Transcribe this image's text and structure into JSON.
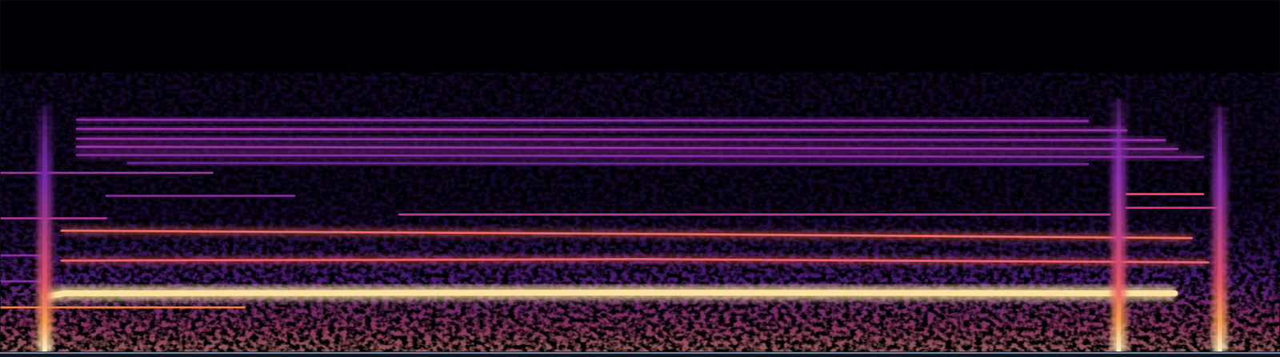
{
  "chart_data": {
    "type": "spectrogram",
    "xlim": [
      0,
      100
    ],
    "ylim": [
      0,
      100
    ],
    "grid": false,
    "tick_labels": false,
    "series": [
      {
        "type": "line",
        "color": "#fde2a0",
        "x": [
          3.5,
          5.0,
          50.0,
          91.8
        ],
        "values": [
          15.7,
          16.7,
          16.9,
          16.7
        ]
      },
      {
        "type": "line",
        "color": "#f0803a",
        "x": [
          0.0,
          19.1
        ],
        "values": [
          12.7,
          12.7
        ]
      },
      {
        "type": "line",
        "color": "#f2606a",
        "x": [
          4.8,
          50.0,
          94.4
        ],
        "values": [
          26.0,
          26.4,
          25.5
        ]
      },
      {
        "type": "line",
        "color": "#f06a62",
        "x": [
          4.8,
          50.0,
          93.1
        ],
        "values": [
          34.5,
          33.6,
          32.4
        ]
      },
      {
        "type": "line",
        "color": "#b8388e",
        "x": [
          31.2,
          86.7
        ],
        "values": [
          39.1,
          39.1
        ]
      },
      {
        "type": "line",
        "color": "#a9348f",
        "x": [
          0.0,
          8.3
        ],
        "values": [
          38.0,
          38.0
        ]
      },
      {
        "type": "line",
        "color": "#8a2a9c",
        "x": [
          8.3,
          23.0
        ],
        "values": [
          44.4,
          44.4
        ]
      },
      {
        "type": "line",
        "color": "#a133a8",
        "x": [
          0.0,
          16.6
        ],
        "values": [
          50.9,
          50.9
        ]
      },
      {
        "type": "line",
        "color": "#8a2aa8",
        "x": [
          0.0,
          3.2
        ],
        "values": [
          27.5,
          27.5
        ]
      },
      {
        "type": "line",
        "color": "#8a2aa8",
        "x": [
          0.0,
          3.2
        ],
        "values": [
          20.1,
          20.1
        ]
      },
      {
        "type": "line",
        "color": "#8e2ca9",
        "x": [
          6.0,
          85.0
        ],
        "values": [
          66.0,
          65.6
        ]
      },
      {
        "type": "line",
        "color": "#9a30aa",
        "x": [
          6.0,
          88.0
        ],
        "values": [
          63.4,
          63.0
        ]
      },
      {
        "type": "line",
        "color": "#9430aa",
        "x": [
          6.0,
          91.0
        ],
        "values": [
          60.6,
          60.2
        ]
      },
      {
        "type": "line",
        "color": "#9c32ac",
        "x": [
          6.0,
          92.0
        ],
        "values": [
          58.3,
          57.7
        ]
      },
      {
        "type": "line",
        "color": "#8a2aa4",
        "x": [
          6.0,
          94.0
        ],
        "values": [
          56.0,
          55.4
        ]
      },
      {
        "type": "line",
        "color": "#6e2494",
        "x": [
          10.0,
          85.0
        ],
        "values": [
          53.7,
          53.4
        ]
      },
      {
        "type": "line",
        "color": "#e0506e",
        "x": [
          88.0,
          94.0
        ],
        "values": [
          44.9,
          44.9
        ]
      },
      {
        "type": "line",
        "color": "#c8407a",
        "x": [
          88.0,
          95.0
        ],
        "values": [
          41.0,
          41.0
        ]
      },
      {
        "type": "burst",
        "color": "#7a2aa8",
        "x": [
          3.5,
          3.5
        ],
        "values": [
          0.0,
          70.0
        ]
      },
      {
        "type": "burst",
        "color": "#8a30b0",
        "x": [
          87.4,
          87.4
        ],
        "values": [
          0.0,
          72.0
        ]
      },
      {
        "type": "burst",
        "color": "#8a30b0",
        "x": [
          95.3,
          95.3
        ],
        "values": [
          0.0,
          70.0
        ]
      }
    ]
  }
}
